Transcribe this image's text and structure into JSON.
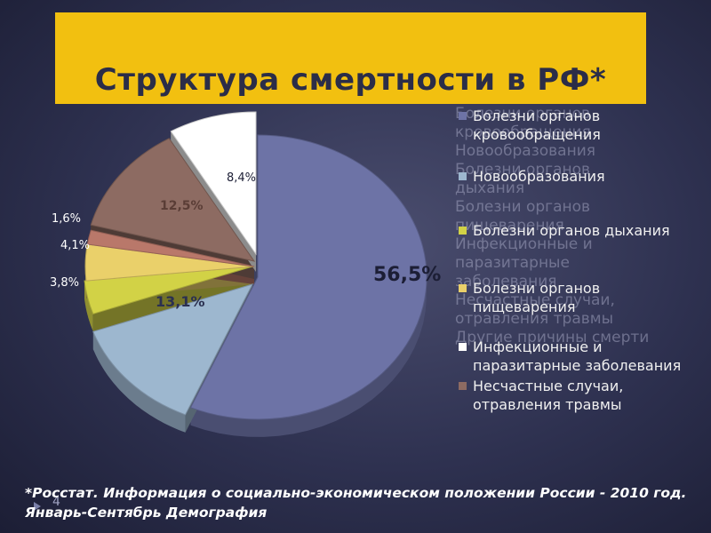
{
  "title": "Структура смертности в РФ*",
  "footnote": "*Росстат. Информация о социально-экономическом положении России - 2010 год. Январь-Сентябрь Демография",
  "page_number": "4",
  "colors": {
    "title_bar": "#f2c010",
    "background": "#2e3150"
  },
  "chart_data": {
    "type": "pie",
    "title": "Структура смертности в РФ*",
    "style": "3d-exploded",
    "slices": [
      {
        "name": "Болезни органов кровообращения",
        "value": 56.5,
        "label": "56,5%",
        "color": "#6d73a6"
      },
      {
        "name": "Новообразования",
        "value": 13.1,
        "label": "13,1%",
        "color": "#9db7cf"
      },
      {
        "name": "Болезни органов дыхания",
        "value": 3.8,
        "label": "3,8%",
        "color": "#d2d246"
      },
      {
        "name": "Болезни органов пищеварения",
        "value": 4.1,
        "label": "4,1%",
        "color": "#ead06a"
      },
      {
        "name": "Инфекционные и паразитарные заболевания",
        "value": 1.6,
        "label": "1,6%",
        "color": "#b9786a"
      },
      {
        "name": "Несчастные случаи, отравления травмы",
        "value": 12.5,
        "label": "12,5%",
        "color": "#8d6b62"
      },
      {
        "name": "Другие причины смерти",
        "value": 8.4,
        "label": "8,4%",
        "color": "#ffffff"
      }
    ],
    "legend_position": "right"
  }
}
